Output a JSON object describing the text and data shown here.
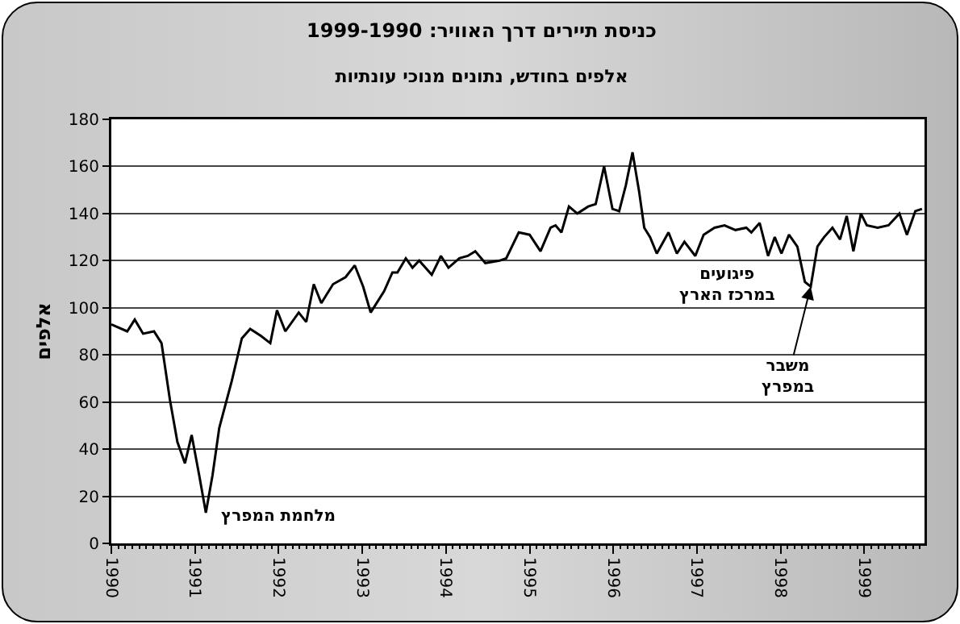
{
  "chart_data": {
    "type": "line",
    "title": "כניסת תיירים דרך האוויר: 1999-1990",
    "subtitle": "אלפים בחודש, נתונים מנוכי עונתיות",
    "ylabel": "אלפים",
    "x": [
      1990.0,
      1990.06,
      1990.19,
      1990.28,
      1990.38,
      1990.51,
      1990.6,
      1990.7,
      1990.79,
      1990.88,
      1990.96,
      1991.05,
      1991.13,
      1991.21,
      1991.29,
      1991.44,
      1991.56,
      1991.66,
      1991.79,
      1991.9,
      1991.98,
      1992.08,
      1992.24,
      1992.33,
      1992.42,
      1992.51,
      1992.65,
      1992.8,
      1992.91,
      1993.01,
      1993.1,
      1993.26,
      1993.36,
      1993.42,
      1993.52,
      1993.6,
      1993.68,
      1993.83,
      1993.94,
      1994.03,
      1994.16,
      1994.26,
      1994.35,
      1994.47,
      1994.64,
      1994.72,
      1994.87,
      1995.0,
      1995.13,
      1995.25,
      1995.31,
      1995.38,
      1995.47,
      1995.57,
      1995.7,
      1995.79,
      1995.89,
      1995.99,
      1996.07,
      1996.15,
      1996.23,
      1996.31,
      1996.37,
      1996.44,
      1996.52,
      1996.66,
      1996.76,
      1996.85,
      1996.98,
      1997.08,
      1997.21,
      1997.33,
      1997.46,
      1997.59,
      1997.65,
      1997.75,
      1997.85,
      1997.93,
      1998.01,
      1998.1,
      1998.2,
      1998.29,
      1998.36,
      1998.44,
      1998.52,
      1998.62,
      1998.71,
      1998.79,
      1998.87,
      1998.96,
      1999.03,
      1999.16,
      1999.29,
      1999.42,
      1999.51,
      1999.61,
      1999.69
    ],
    "values": [
      93,
      92,
      90,
      95,
      89,
      90,
      85,
      61,
      43,
      34,
      46,
      29,
      13,
      29,
      49,
      69,
      87,
      91,
      88,
      85,
      99,
      90,
      98,
      94,
      110,
      102,
      110,
      113,
      118,
      109,
      98,
      107,
      115,
      115,
      121,
      117,
      120,
      114,
      122,
      117,
      121,
      122,
      124,
      119,
      120,
      121,
      132,
      131,
      124,
      134,
      135,
      132,
      143,
      140,
      143,
      144,
      160,
      142,
      141,
      152,
      166,
      149,
      134,
      130,
      123,
      132,
      123,
      128,
      122,
      131,
      134,
      135,
      133,
      134,
      132,
      136,
      122,
      130,
      123,
      131,
      126,
      111,
      109,
      126,
      130,
      134,
      129,
      139,
      124,
      140,
      135,
      134,
      135,
      140,
      131,
      141,
      142
    ],
    "color": "#000000",
    "xlim": [
      1990,
      1999.72
    ],
    "xticks": [
      {
        "value": 1990,
        "label": "1990"
      },
      {
        "value": 1991,
        "label": "1991"
      },
      {
        "value": 1992,
        "label": "1992"
      },
      {
        "value": 1993,
        "label": "1993"
      },
      {
        "value": 1994,
        "label": "1994"
      },
      {
        "value": 1995,
        "label": "1995"
      },
      {
        "value": 1996,
        "label": "1996"
      },
      {
        "value": 1997,
        "label": "1997"
      },
      {
        "value": 1998,
        "label": "1998"
      },
      {
        "value": 1999,
        "label": "1999"
      }
    ],
    "ylim": [
      0,
      180
    ],
    "yticks": [
      0,
      20,
      40,
      60,
      80,
      100,
      120,
      140,
      160,
      180
    ],
    "grid": "y",
    "marker": "none",
    "line_style": "solid",
    "annotations": [
      {
        "text": "מלחמת המפרץ",
        "x": 1991.13,
        "y": 13
      },
      {
        "text": "פיגועים\nבמרכז הארץ",
        "x": 1996.52,
        "y": 123
      },
      {
        "text": "משבר\nבמפרץ",
        "x": 1998.36,
        "y": 109
      }
    ]
  }
}
